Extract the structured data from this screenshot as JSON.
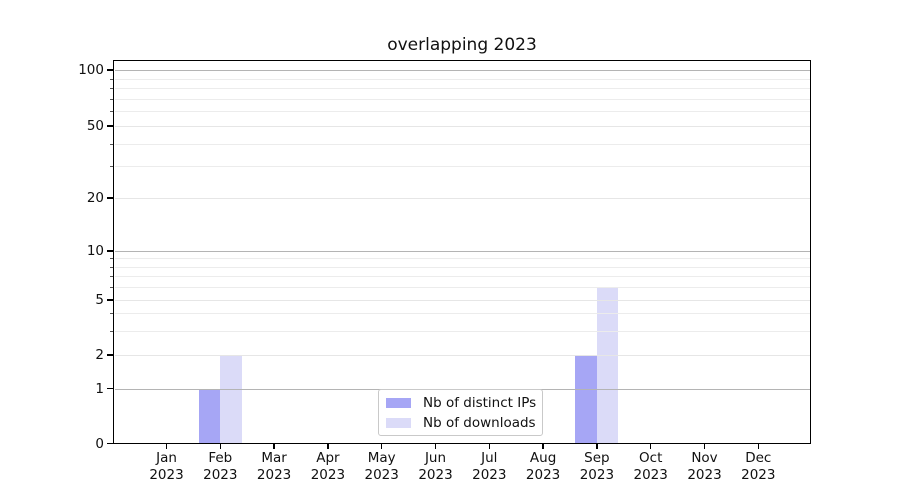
{
  "chart_data": {
    "type": "bar",
    "title": "overlapping 2023",
    "x_months": [
      "Jan",
      "Feb",
      "Mar",
      "Apr",
      "May",
      "Jun",
      "Jul",
      "Aug",
      "Sep",
      "Oct",
      "Nov",
      "Dec"
    ],
    "x_year": "2023",
    "categories": [
      "Jan 2023",
      "Feb 2023",
      "Mar 2023",
      "Apr 2023",
      "May 2023",
      "Jun 2023",
      "Jul 2023",
      "Aug 2023",
      "Sep 2023",
      "Oct 2023",
      "Nov 2023",
      "Dec 2023"
    ],
    "series": [
      {
        "name": "Nb of distinct IPs",
        "color": "#a6a6f5",
        "values": [
          0,
          1,
          0,
          0,
          0,
          0,
          0,
          0,
          2,
          0,
          0,
          0
        ]
      },
      {
        "name": "Nb of downloads",
        "color": "#dbdbf8",
        "values": [
          0,
          2,
          0,
          0,
          0,
          0,
          0,
          0,
          6,
          0,
          0,
          0
        ]
      }
    ],
    "y_ticks": [
      0,
      1,
      2,
      5,
      10,
      20,
      50,
      100
    ],
    "y_major_gridlines": [
      1,
      10,
      100
    ],
    "y_labeled_light_gridlines": [
      2,
      5,
      20,
      50
    ],
    "y_minor_gridlines": [
      3,
      4,
      6,
      7,
      8,
      9,
      30,
      40,
      60,
      70,
      80,
      90
    ],
    "y_scale": "log-like with custom ticks, linear 0-1",
    "ylim": [
      0,
      110
    ],
    "xlabel": "",
    "ylabel": "",
    "grid": "horizontal",
    "legend_position": "inside-bottom-center",
    "bar_layout": "pairs side-by-side, meeting at month tick center"
  }
}
